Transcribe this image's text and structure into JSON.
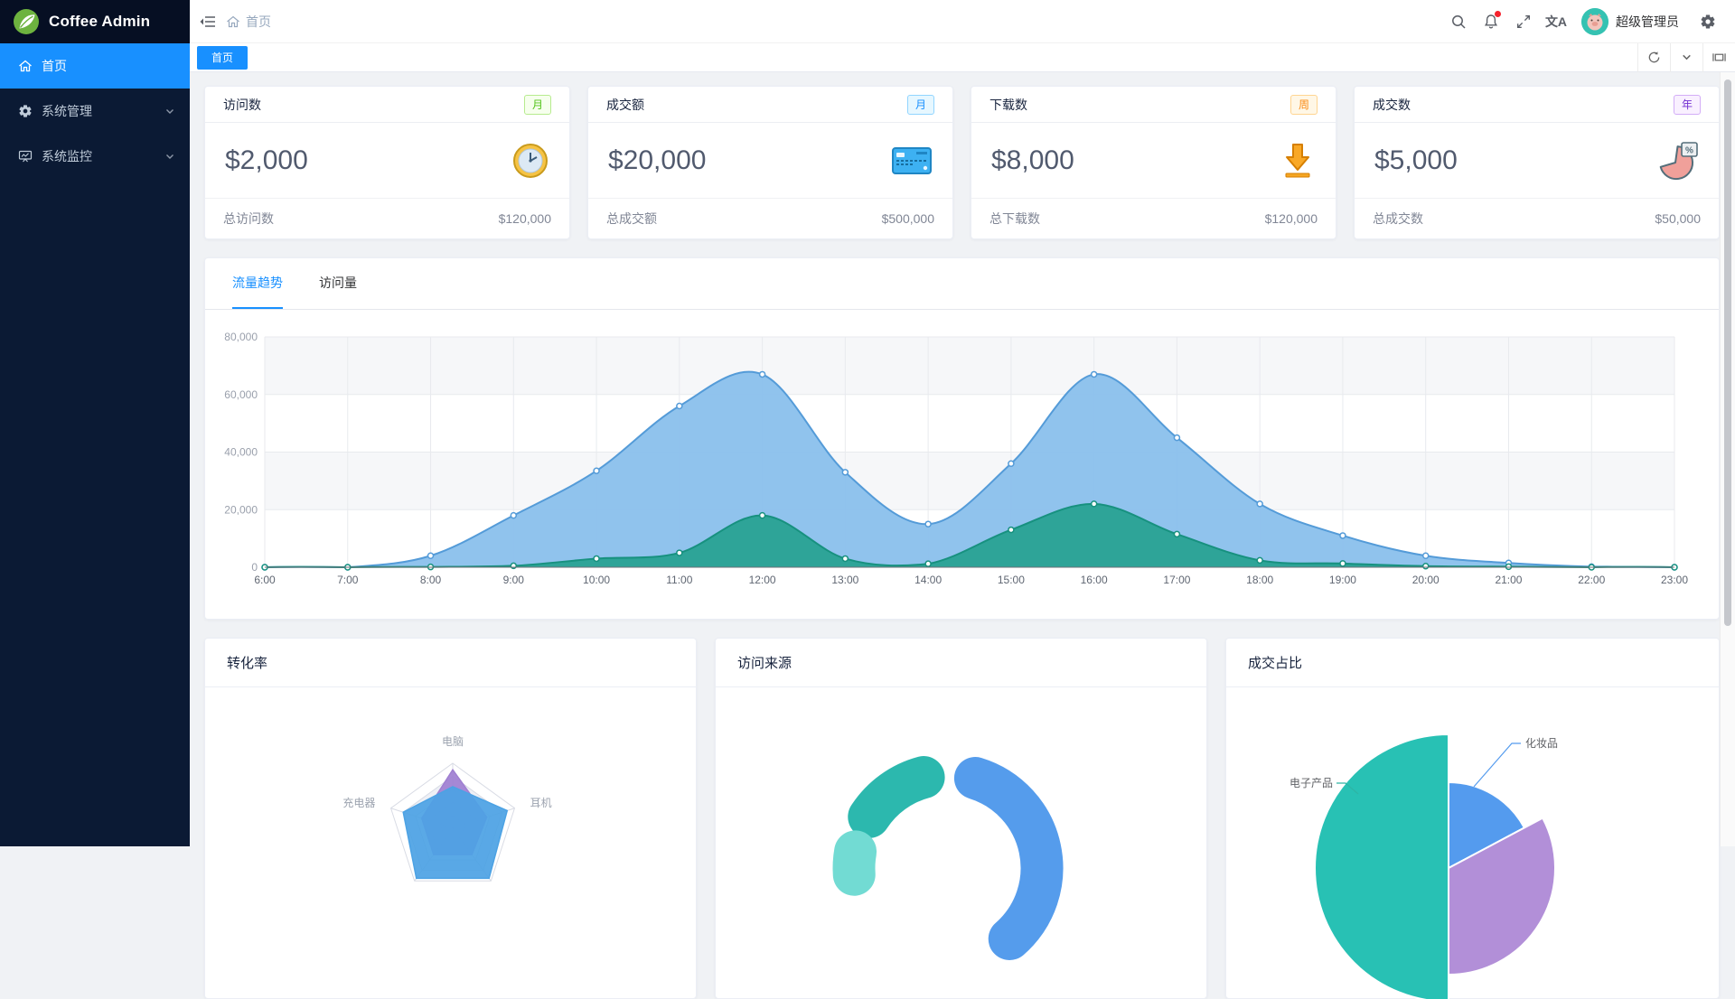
{
  "app": {
    "title": "Coffee Admin"
  },
  "sidebar": {
    "items": [
      {
        "label": "首页",
        "active": true
      },
      {
        "label": "系统管理",
        "expandable": true
      },
      {
        "label": "系统监控",
        "expandable": true
      }
    ]
  },
  "header": {
    "breadcrumb": {
      "home_label": "首页"
    },
    "user_name": "超级管理员",
    "translate_glyph": "文A",
    "notification_dot_color": "#f5222d",
    "accent_color": "#1890ff"
  },
  "tags_bar": {
    "tabs": [
      {
        "label": "首页",
        "active": true
      }
    ]
  },
  "stat_cards": [
    {
      "title": "访问数",
      "badge": "月",
      "badge_colors": {
        "text": "#52c41a",
        "bg": "#f6ffed",
        "border": "#b7eb8f"
      },
      "value": "$2,000",
      "icon": "clock-icon",
      "footer_label": "总访问数",
      "footer_value": "$120,000"
    },
    {
      "title": "成交额",
      "badge": "月",
      "badge_colors": {
        "text": "#1890ff",
        "bg": "#e6f7ff",
        "border": "#91d5ff"
      },
      "value": "$20,000",
      "icon": "bank-card-icon",
      "footer_label": "总成交额",
      "footer_value": "$500,000"
    },
    {
      "title": "下载数",
      "badge": "周",
      "badge_colors": {
        "text": "#fa8c16",
        "bg": "#fff7e6",
        "border": "#ffd591"
      },
      "value": "$8,000",
      "icon": "download-icon",
      "footer_label": "总下载数",
      "footer_value": "$120,000"
    },
    {
      "title": "成交数",
      "badge": "年",
      "badge_colors": {
        "text": "#722ed1",
        "bg": "#f9f0ff",
        "border": "#d3adf7"
      },
      "value": "$5,000",
      "icon": "pie-percent-icon",
      "icon_glyph": "%",
      "footer_label": "总成交数",
      "footer_value": "$50,000"
    }
  ],
  "trend_card": {
    "tabs": [
      {
        "label": "流量趋势",
        "active": true
      },
      {
        "label": "访问量",
        "active": false
      }
    ]
  },
  "bottom_cards": [
    {
      "title": "转化率"
    },
    {
      "title": "访问来源"
    },
    {
      "title": "成交占比"
    }
  ],
  "chart_data": [
    {
      "id": "traffic-trend",
      "type": "area",
      "grid": "on",
      "legend": "none",
      "x": [
        "6:00",
        "7:00",
        "8:00",
        "9:00",
        "10:00",
        "11:00",
        "12:00",
        "13:00",
        "14:00",
        "15:00",
        "16:00",
        "17:00",
        "18:00",
        "19:00",
        "20:00",
        "21:00",
        "22:00",
        "23:00"
      ],
      "ylim": [
        0,
        80000
      ],
      "yticks": [
        0,
        20000,
        40000,
        60000,
        80000
      ],
      "ytick_labels": [
        "0",
        "20,000",
        "40,000",
        "60,000",
        "80,000"
      ],
      "series": [
        {
          "name": "flow-series-1",
          "line_color": "#549bd8",
          "fill_color": "#8ac0ec",
          "values": [
            0,
            0,
            4000,
            18000,
            33500,
            56000,
            67000,
            33000,
            15000,
            36000,
            67000,
            45000,
            22000,
            11000,
            4000,
            1500,
            200,
            0
          ]
        },
        {
          "name": "flow-series-2",
          "line_color": "#17917f",
          "fill_color": "#29a294",
          "values": [
            0,
            0,
            100,
            500,
            3000,
            5000,
            18000,
            3000,
            1200,
            13000,
            22000,
            11500,
            2400,
            1300,
            400,
            200,
            0,
            0
          ]
        }
      ]
    },
    {
      "id": "conversion-radar",
      "type": "radar",
      "max": 100,
      "indicators": [
        "电脑",
        "耳机",
        "",
        "",
        "充电器"
      ],
      "note": "bottom two indicator labels cut off below viewport",
      "series": [
        {
          "name": "radar-purple",
          "color": "#9f7fd1",
          "values": [
            90,
            55,
            50,
            50,
            50
          ]
        },
        {
          "name": "radar-blue",
          "color": "#4ca2e4",
          "values": [
            64,
            88,
            95,
            95,
            80
          ]
        }
      ]
    },
    {
      "id": "visit-source",
      "type": "pie",
      "subtype": "donut",
      "rounded": true,
      "note": "lower half cut off below viewport",
      "segments": [
        {
          "name": "segment-blue",
          "color": "#559cec",
          "start_deg": 17,
          "end_deg": 139
        },
        {
          "name": "segment-teal",
          "color": "#2cb8ae",
          "start_deg": 303,
          "end_deg": 345
        },
        {
          "name": "segment-cyan",
          "color": "#72dbd3",
          "start_deg": 266,
          "end_deg": 280
        }
      ]
    },
    {
      "id": "deal-share",
      "type": "pie",
      "subtype": "rose",
      "label_color": "#606266",
      "slices": [
        {
          "label": "电子产品",
          "color": "#28c1b4",
          "start_deg": 180,
          "end_deg": 360,
          "radius": 148
        },
        {
          "label": "化妆品",
          "color": "#549bee",
          "start_deg": 0,
          "end_deg": 62,
          "radius": 95
        },
        {
          "label": "",
          "color": "#b28fd8",
          "start_deg": 62,
          "end_deg": 180,
          "radius": 118
        }
      ]
    }
  ]
}
